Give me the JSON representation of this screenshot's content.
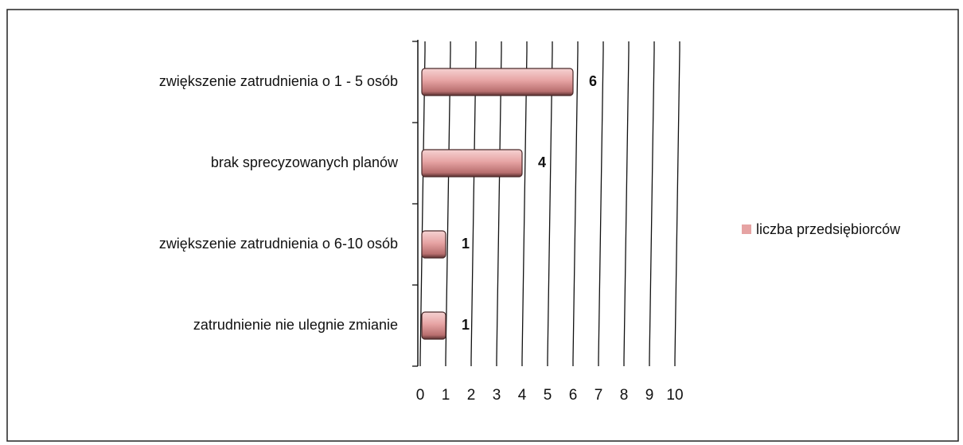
{
  "chart_data": {
    "type": "bar",
    "orientation": "horizontal",
    "categories": [
      "zwiększenie zatrudnienia o 1 - 5 osób",
      "brak sprecyzowanych planów",
      "zwiększenie zatrudnienia o 6-10 osób",
      "zatrudnienie nie ulegnie zmianie"
    ],
    "series": [
      {
        "name": "liczba przedsiębiorców",
        "color": "#e6a3a3",
        "values": [
          6,
          4,
          1,
          1
        ]
      }
    ],
    "xlim": [
      0,
      10
    ],
    "xticks": [
      0,
      1,
      2,
      3,
      4,
      5,
      6,
      7,
      8,
      9,
      10
    ],
    "grid": true,
    "legend": "right"
  }
}
